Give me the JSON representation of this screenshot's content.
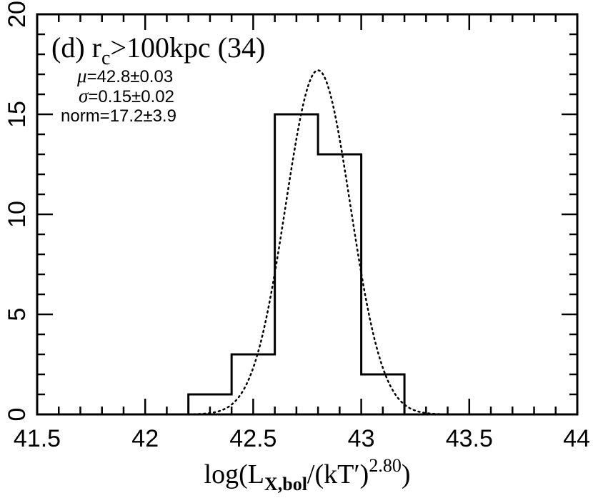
{
  "chart_data": {
    "type": "histogram",
    "title": {
      "label": "(d) r",
      "subscript": "c",
      "rest": ">100kpc (34)"
    },
    "annotations": {
      "mu_symbol": "μ",
      "mu_text": "=42.8±0.03",
      "sigma_symbol": "σ",
      "sigma_text": "=0.15±0.02",
      "norm_text": "norm=17.2±3.9"
    },
    "xlabel": {
      "prefix": "log(L",
      "subscript": "X,bol",
      "middle": "/(kT′)",
      "superscript": "2.80",
      "suffix": ")"
    },
    "xlim": [
      41.5,
      44
    ],
    "ylim": [
      0,
      20
    ],
    "x_ticks": [
      {
        "value": 41.5,
        "label": "41.5"
      },
      {
        "value": 42,
        "label": "42"
      },
      {
        "value": 42.5,
        "label": "42.5"
      },
      {
        "value": 43,
        "label": "43"
      },
      {
        "value": 43.5,
        "label": "43.5"
      },
      {
        "value": 44,
        "label": "44"
      }
    ],
    "y_ticks": [
      {
        "value": 0,
        "label": "0"
      },
      {
        "value": 5,
        "label": "5"
      },
      {
        "value": 10,
        "label": "10"
      },
      {
        "value": 15,
        "label": "15"
      },
      {
        "value": 20,
        "label": "20"
      }
    ],
    "bins": [
      {
        "x0": 42.2,
        "x1": 42.4,
        "count": 1
      },
      {
        "x0": 42.4,
        "x1": 42.6,
        "count": 3
      },
      {
        "x0": 42.6,
        "x1": 42.8,
        "count": 15
      },
      {
        "x0": 42.8,
        "x1": 43.0,
        "count": 13
      },
      {
        "x0": 43.0,
        "x1": 43.2,
        "count": 2
      }
    ],
    "gaussian_fit": {
      "mu": 42.8,
      "sigma": 0.15,
      "norm": 17.2,
      "style": "dotted"
    },
    "grid": false
  }
}
